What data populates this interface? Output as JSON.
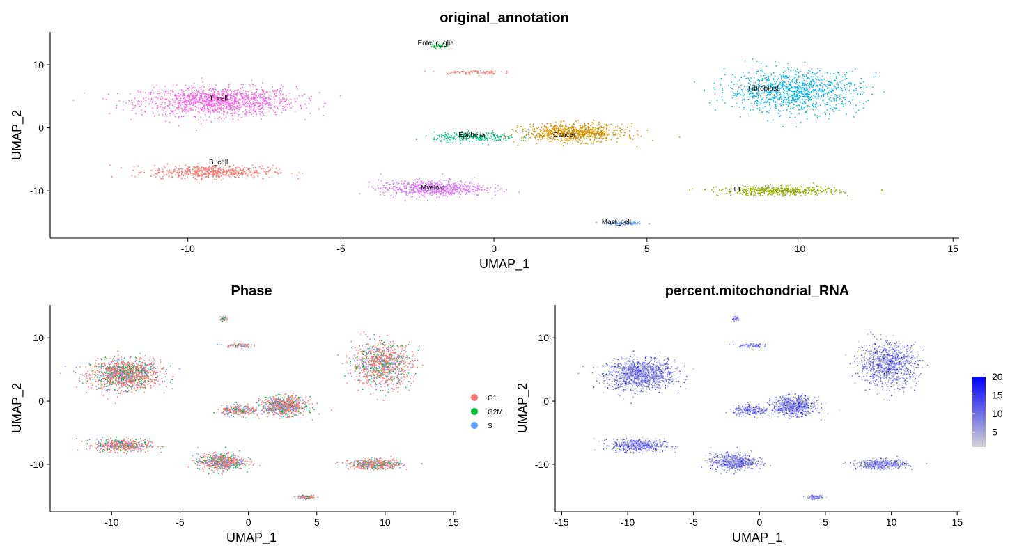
{
  "chart_data": [
    {
      "type": "scatter",
      "title": "original_annotation",
      "xlabel": "UMAP_1",
      "ylabel": "UMAP_2",
      "xlim": [
        -14.5,
        15.2
      ],
      "ylim": [
        -17.5,
        15.2
      ],
      "xticks": [
        -10,
        -5,
        0,
        5,
        10,
        15
      ],
      "yticks": [
        10,
        0,
        -10
      ],
      "grid": false,
      "clusters": [
        {
          "name": "T_cell",
          "color": "#f564e3",
          "label_at": [
            -9,
            4.3
          ],
          "center": [
            -9,
            4.2
          ],
          "spread": [
            2.8,
            2.7
          ],
          "n": 1300
        },
        {
          "name": "B_cell",
          "color": "#f8766d",
          "label_at": [
            -9,
            -5.8
          ],
          "center": [
            -9.2,
            -7.0
          ],
          "spread": [
            2.2,
            1.2
          ],
          "n": 550
        },
        {
          "name": "Myeloid",
          "color": "#db72fb",
          "label_at": [
            -2,
            -9.8
          ],
          "center": [
            -2.0,
            -9.6
          ],
          "spread": [
            1.9,
            1.5
          ],
          "n": 650
        },
        {
          "name": "Enteric_glia",
          "color": "#00ba38",
          "label_at": [
            -1.9,
            13.1
          ],
          "center": [
            -1.8,
            13.0
          ],
          "spread": [
            0.3,
            0.5
          ],
          "n": 40
        },
        {
          "name": "",
          "color": "#f8766d",
          "label_at": null,
          "center": [
            -0.8,
            8.8
          ],
          "spread": [
            1.1,
            0.4
          ],
          "n": 80
        },
        {
          "name": "Epithelial",
          "color": "#00bf7d",
          "label_at": [
            -0.7,
            -1.5
          ],
          "center": [
            -0.6,
            -1.5
          ],
          "spread": [
            1.5,
            0.9
          ],
          "n": 260
        },
        {
          "name": "Cancer",
          "color": "#d39200",
          "label_at": [
            2.3,
            -1.5
          ],
          "center": [
            2.6,
            -0.8
          ],
          "spread": [
            1.8,
            1.7
          ],
          "n": 800
        },
        {
          "name": "Fibroblast",
          "color": "#00b4ef",
          "label_at": [
            8.8,
            5.9
          ],
          "center": [
            9.8,
            5.8
          ],
          "spread": [
            2.4,
            4.0
          ],
          "n": 1000
        },
        {
          "name": "EC",
          "color": "#93aa00",
          "label_at": [
            8.0,
            -10.1
          ],
          "center": [
            9.3,
            -10.0
          ],
          "spread": [
            2.1,
            0.9
          ],
          "n": 480
        },
        {
          "name": "Mast_cell",
          "color": "#619cff",
          "label_at": [
            4.0,
            -15.3
          ],
          "center": [
            4.3,
            -15.2
          ],
          "spread": [
            0.7,
            0.3
          ],
          "n": 90
        }
      ]
    },
    {
      "type": "scatter",
      "title": "Phase",
      "xlabel": "UMAP_1",
      "ylabel": "UMAP_2",
      "xlim": [
        -14.5,
        15.2
      ],
      "ylim": [
        -17.5,
        15.2
      ],
      "xticks": [
        -10,
        -5,
        0,
        5,
        10,
        15
      ],
      "yticks": [
        10,
        0,
        -10
      ],
      "grid": false,
      "legend_position": "right",
      "legend": [
        {
          "name": "G1",
          "color": "#f8766d"
        },
        {
          "name": "G2M",
          "color": "#00ba38"
        },
        {
          "name": "S",
          "color": "#619cff"
        }
      ],
      "phase_mix": {
        "G1": 0.62,
        "G2M": 0.16,
        "S": 0.22
      }
    },
    {
      "type": "scatter",
      "title": "percent.mitochondrial_RNA",
      "xlabel": "UMAP_1",
      "ylabel": "UMAP_2",
      "xlim": [
        -15.5,
        15.2
      ],
      "ylim": [
        -17.5,
        15.2
      ],
      "xticks": [
        -15,
        -10,
        -5,
        0,
        5,
        10,
        15
      ],
      "yticks": [
        10,
        0,
        -10
      ],
      "grid": false,
      "legend_position": "right",
      "colorbar": {
        "low_color": "#d3d3d3",
        "high_color": "#0000ff",
        "range": [
          1,
          20
        ],
        "ticks": [
          5,
          10,
          15,
          20
        ]
      }
    }
  ]
}
